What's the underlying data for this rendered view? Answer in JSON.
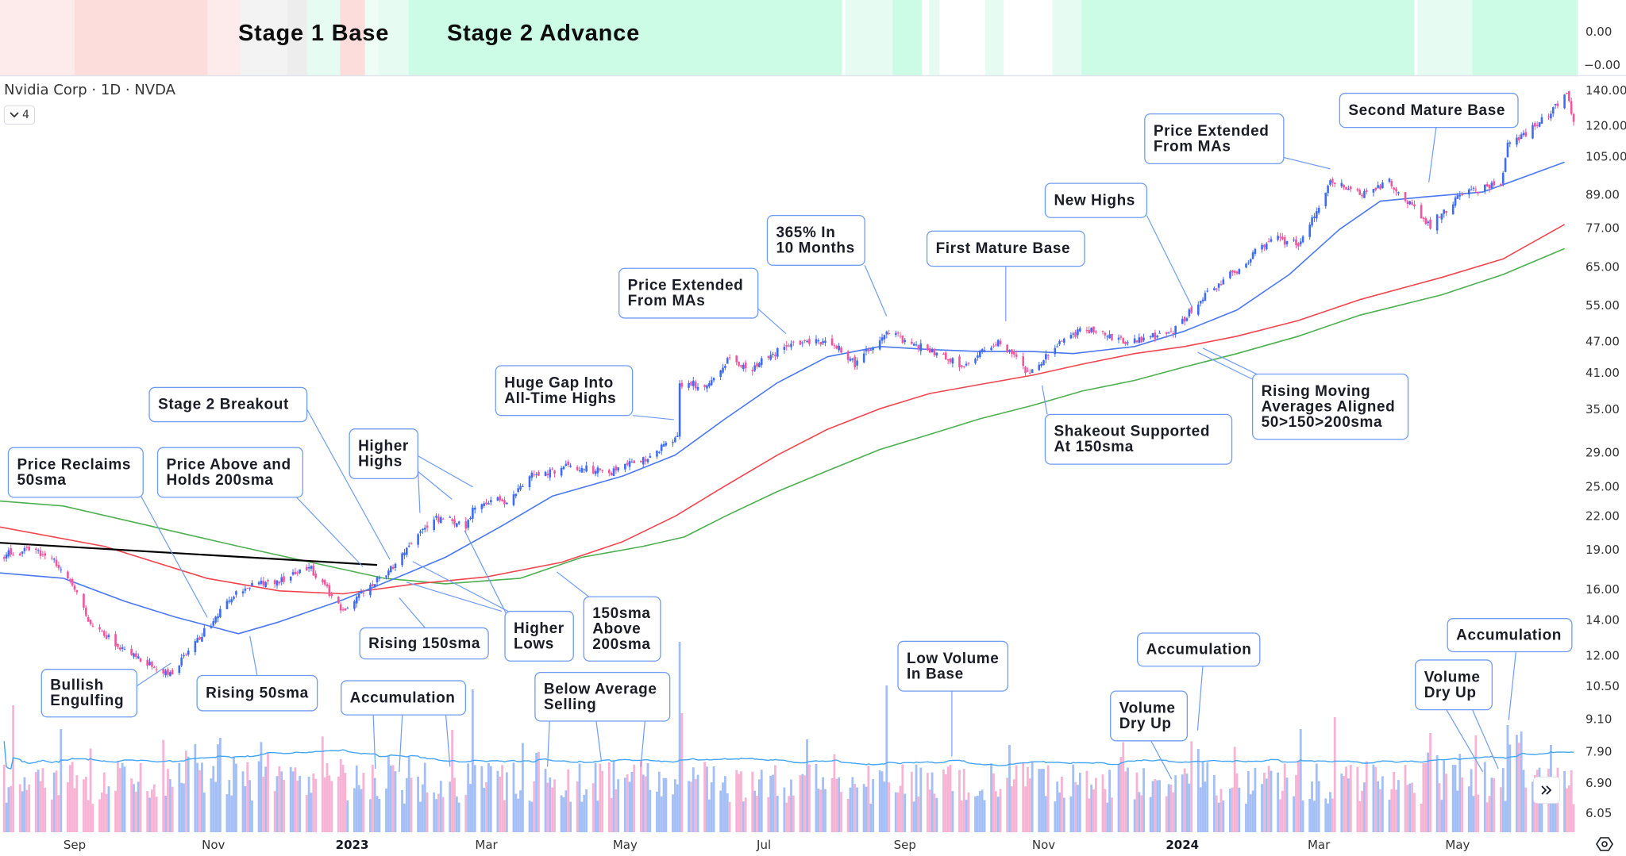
{
  "header": {
    "symbol_title": "Nvidia Corp · 1D · NVDA",
    "legend_toggle_count": "4"
  },
  "stage_band": {
    "labels": [
      "Stage 1 Base",
      "Stage 2 Advance"
    ],
    "axis_labels": [
      "0.00",
      "−0.00"
    ],
    "palette": {
      "red_strong": "#fddcdc",
      "red_light": "#fdeaea",
      "gray": "#f3f3f3",
      "gray_dark": "#ededed",
      "green_light": "#e6fcf2",
      "green_faint": "#f0fdf7",
      "green_strong": "#ccfce5",
      "none": "#ffffff"
    }
  },
  "colors": {
    "up": "#3d6bf5",
    "down": "#f2559b",
    "vol_up": "#a3bff5",
    "vol_down": "#f7b3d3",
    "sma50": "#4a78f0",
    "sma150": "#f0454f",
    "sma200": "#4caf50",
    "vol_ma": "#42a5f5",
    "trendline": "#000000",
    "annotation_border": "#6f9cf2"
  },
  "chart_data": {
    "type": "candlestick",
    "y_scale": "log",
    "ylim": [
      6.05,
      140
    ],
    "y_ticks": [
      "140.00",
      "120.00",
      "105.00",
      "89.00",
      "77.00",
      "65.00",
      "55.00",
      "47.00",
      "41.00",
      "35.00",
      "29.00",
      "25.00",
      "22.00",
      "19.00",
      "16.00",
      "14.00",
      "12.00",
      "10.50",
      "9.10",
      "7.90",
      "6.90",
      "6.05"
    ],
    "x_ticks": [
      {
        "label": "Sep",
        "date": "2022-09-01"
      },
      {
        "label": "Nov",
        "date": "2022-11-01"
      },
      {
        "label": "2023",
        "date": "2023-01-01",
        "bold": true
      },
      {
        "label": "Mar",
        "date": "2023-03-01"
      },
      {
        "label": "May",
        "date": "2023-05-01"
      },
      {
        "label": "Jul",
        "date": "2023-07-01"
      },
      {
        "label": "Sep",
        "date": "2023-09-01"
      },
      {
        "label": "Nov",
        "date": "2023-11-01"
      },
      {
        "label": "2024",
        "date": "2024-01-01",
        "bold": true
      },
      {
        "label": "Mar",
        "date": "2024-03-01"
      },
      {
        "label": "May",
        "date": "2024-05-01"
      }
    ],
    "grid": false,
    "close_path": [
      [
        "2022-08-01",
        18.6
      ],
      [
        "2022-08-15",
        19.0
      ],
      [
        "2022-08-25",
        17.8
      ],
      [
        "2022-09-01",
        15.9
      ],
      [
        "2022-09-07",
        14.0
      ],
      [
        "2022-09-23",
        12.2
      ],
      [
        "2022-10-13",
        11.0
      ],
      [
        "2022-10-29",
        13.5
      ],
      [
        "2022-11-12",
        15.9
      ],
      [
        "2022-11-30",
        16.7
      ],
      [
        "2022-12-14",
        17.5
      ],
      [
        "2022-12-28",
        14.6
      ],
      [
        "2023-01-09",
        16.3
      ],
      [
        "2023-01-20",
        17.9
      ],
      [
        "2023-01-30",
        20.4
      ],
      [
        "2023-02-09",
        22.0
      ],
      [
        "2023-02-20",
        21.0
      ],
      [
        "2023-02-24",
        23.2
      ],
      [
        "2023-03-10",
        23.6
      ],
      [
        "2023-03-20",
        26.3
      ],
      [
        "2023-04-05",
        27.2
      ],
      [
        "2023-04-25",
        26.7
      ],
      [
        "2023-05-10",
        28.3
      ],
      [
        "2023-05-24",
        31.0
      ],
      [
        "2023-05-25",
        39.0
      ],
      [
        "2023-06-05",
        39.0
      ],
      [
        "2023-06-15",
        43.3
      ],
      [
        "2023-06-26",
        42.0
      ],
      [
        "2023-07-14",
        47.0
      ],
      [
        "2023-07-31",
        47.0
      ],
      [
        "2023-08-10",
        42.5
      ],
      [
        "2023-08-24",
        48.9
      ],
      [
        "2023-09-08",
        46.0
      ],
      [
        "2023-09-26",
        42.5
      ],
      [
        "2023-10-12",
        47.0
      ],
      [
        "2023-10-26",
        40.9
      ],
      [
        "2023-11-09",
        47.0
      ],
      [
        "2023-11-20",
        49.7
      ],
      [
        "2023-12-08",
        47.0
      ],
      [
        "2023-12-28",
        48.9
      ],
      [
        "2024-01-08",
        56.0
      ],
      [
        "2024-01-25",
        64.3
      ],
      [
        "2024-02-09",
        73.7
      ],
      [
        "2024-02-21",
        72.0
      ],
      [
        "2024-03-07",
        95.0
      ],
      [
        "2024-03-20",
        89.8
      ],
      [
        "2024-04-01",
        94.0
      ],
      [
        "2024-04-19",
        78.0
      ],
      [
        "2024-05-01",
        88.0
      ],
      [
        "2024-05-20",
        94.0
      ],
      [
        "2024-05-23",
        110.0
      ],
      [
        "2024-06-05",
        120.5
      ],
      [
        "2024-06-18",
        138.0
      ],
      [
        "2024-06-21",
        120.5
      ]
    ],
    "sma50": [
      [
        "2022-07-30",
        17.2
      ],
      [
        "2022-08-27",
        16.8
      ],
      [
        "2022-09-23",
        15.2
      ],
      [
        "2022-10-15",
        14.2
      ],
      [
        "2022-11-12",
        13.2
      ],
      [
        "2022-11-30",
        13.9
      ],
      [
        "2022-12-28",
        15.3
      ],
      [
        "2023-01-20",
        16.8
      ],
      [
        "2023-02-11",
        18.4
      ],
      [
        "2023-03-07",
        21.0
      ],
      [
        "2023-03-30",
        24.0
      ],
      [
        "2023-04-30",
        26.2
      ],
      [
        "2023-05-23",
        28.7
      ],
      [
        "2023-06-14",
        33.6
      ],
      [
        "2023-07-07",
        39.3
      ],
      [
        "2023-07-29",
        44.0
      ],
      [
        "2023-08-21",
        46.0
      ],
      [
        "2023-09-12",
        45.4
      ],
      [
        "2023-10-04",
        45.0
      ],
      [
        "2023-10-27",
        45.0
      ],
      [
        "2023-11-14",
        44.6
      ],
      [
        "2023-12-11",
        46.0
      ],
      [
        "2024-01-02",
        49.2
      ],
      [
        "2024-01-25",
        53.9
      ],
      [
        "2024-02-17",
        62.9
      ],
      [
        "2024-03-10",
        76.5
      ],
      [
        "2024-03-28",
        86.5
      ],
      [
        "2024-04-15",
        88.0
      ],
      [
        "2024-05-12",
        90.0
      ],
      [
        "2024-05-30",
        96.0
      ],
      [
        "2024-06-17",
        102.5
      ]
    ],
    "sma150": [
      [
        "2022-07-30",
        21.0
      ],
      [
        "2022-09-14",
        19.3
      ],
      [
        "2022-10-29",
        16.8
      ],
      [
        "2022-11-30",
        15.9
      ],
      [
        "2022-12-28",
        15.7
      ],
      [
        "2023-01-29",
        16.4
      ],
      [
        "2023-03-01",
        16.9
      ],
      [
        "2023-04-03",
        18.0
      ],
      [
        "2023-04-30",
        19.7
      ],
      [
        "2023-05-23",
        22.0
      ],
      [
        "2023-06-14",
        25.1
      ],
      [
        "2023-07-07",
        28.7
      ],
      [
        "2023-07-29",
        32.1
      ],
      [
        "2023-08-21",
        35.1
      ],
      [
        "2023-09-12",
        37.5
      ],
      [
        "2023-10-04",
        39.0
      ],
      [
        "2023-10-27",
        40.6
      ],
      [
        "2023-11-18",
        42.6
      ],
      [
        "2023-12-11",
        44.6
      ],
      [
        "2024-01-02",
        46.0
      ],
      [
        "2024-01-25",
        48.1
      ],
      [
        "2024-02-21",
        51.5
      ],
      [
        "2024-03-19",
        56.4
      ],
      [
        "2024-04-24",
        62.1
      ],
      [
        "2024-05-21",
        67.3
      ],
      [
        "2024-06-17",
        78.2
      ]
    ],
    "sma200": [
      [
        "2022-07-30",
        23.5
      ],
      [
        "2022-08-27",
        23.0
      ],
      [
        "2022-10-06",
        21.0
      ],
      [
        "2022-11-12",
        19.3
      ],
      [
        "2022-12-14",
        18.0
      ],
      [
        "2023-01-15",
        16.8
      ],
      [
        "2023-02-11",
        16.4
      ],
      [
        "2023-03-16",
        16.8
      ],
      [
        "2023-04-12",
        18.4
      ],
      [
        "2023-05-09",
        19.3
      ],
      [
        "2023-05-27",
        20.1
      ],
      [
        "2023-06-14",
        22.0
      ],
      [
        "2023-07-07",
        24.5
      ],
      [
        "2023-07-29",
        26.8
      ],
      [
        "2023-08-21",
        29.4
      ],
      [
        "2023-09-12",
        31.4
      ],
      [
        "2023-10-04",
        33.6
      ],
      [
        "2023-10-27",
        35.6
      ],
      [
        "2023-11-18",
        37.9
      ],
      [
        "2023-12-11",
        39.7
      ],
      [
        "2024-01-02",
        42.1
      ],
      [
        "2024-01-25",
        44.6
      ],
      [
        "2024-02-21",
        48.1
      ],
      [
        "2024-03-19",
        52.7
      ],
      [
        "2024-04-24",
        57.6
      ],
      [
        "2024-05-21",
        62.9
      ],
      [
        "2024-06-17",
        70.4
      ]
    ],
    "trendline": [
      [
        "2022-07-30",
        19.6
      ],
      [
        "2023-01-12",
        17.8
      ]
    ],
    "series_legend": []
  },
  "annotations": [
    {
      "lines": [
        "Price Reclaims",
        "50sma"
      ]
    },
    {
      "lines": [
        "Bullish",
        "Engulfing"
      ]
    },
    {
      "lines": [
        "Price Above and",
        "Holds 200sma"
      ]
    },
    {
      "lines": [
        "Stage 2 Breakout"
      ]
    },
    {
      "lines": [
        "Rising 50sma"
      ]
    },
    {
      "lines": [
        "Rising 150sma"
      ]
    },
    {
      "lines": [
        "Higher",
        "Highs"
      ]
    },
    {
      "lines": [
        "Higher",
        "Lows"
      ]
    },
    {
      "lines": [
        "150sma",
        "Above",
        "200sma"
      ]
    },
    {
      "lines": [
        "Accumulation"
      ]
    },
    {
      "lines": [
        "Below Average",
        "Selling"
      ]
    },
    {
      "lines": [
        "Huge Gap Into",
        "All-Time Highs"
      ]
    },
    {
      "lines": [
        "Price Extended",
        "From MAs"
      ]
    },
    {
      "lines": [
        "365% In",
        "10 Months"
      ]
    },
    {
      "lines": [
        "First Mature Base"
      ]
    },
    {
      "lines": [
        "New Highs"
      ]
    },
    {
      "lines": [
        "Shakeout Supported",
        "At 150sma"
      ]
    },
    {
      "lines": [
        "Rising Moving",
        "Averages Aligned",
        "50>150>200sma"
      ]
    },
    {
      "lines": [
        "Price Extended",
        "From MAs"
      ]
    },
    {
      "lines": [
        "Second Mature Base"
      ]
    },
    {
      "lines": [
        "Low Volume",
        "In Base"
      ]
    },
    {
      "lines": [
        "Accumulation"
      ]
    },
    {
      "lines": [
        "Volume",
        "Dry Up"
      ]
    },
    {
      "lines": [
        "Accumulation"
      ]
    },
    {
      "lines": [
        "Volume",
        "Dry Up"
      ]
    }
  ],
  "icons": {
    "legend_toggle": "chevron-down-icon",
    "scroll": "double-chevron-right-icon",
    "settings": "settings-icon"
  }
}
